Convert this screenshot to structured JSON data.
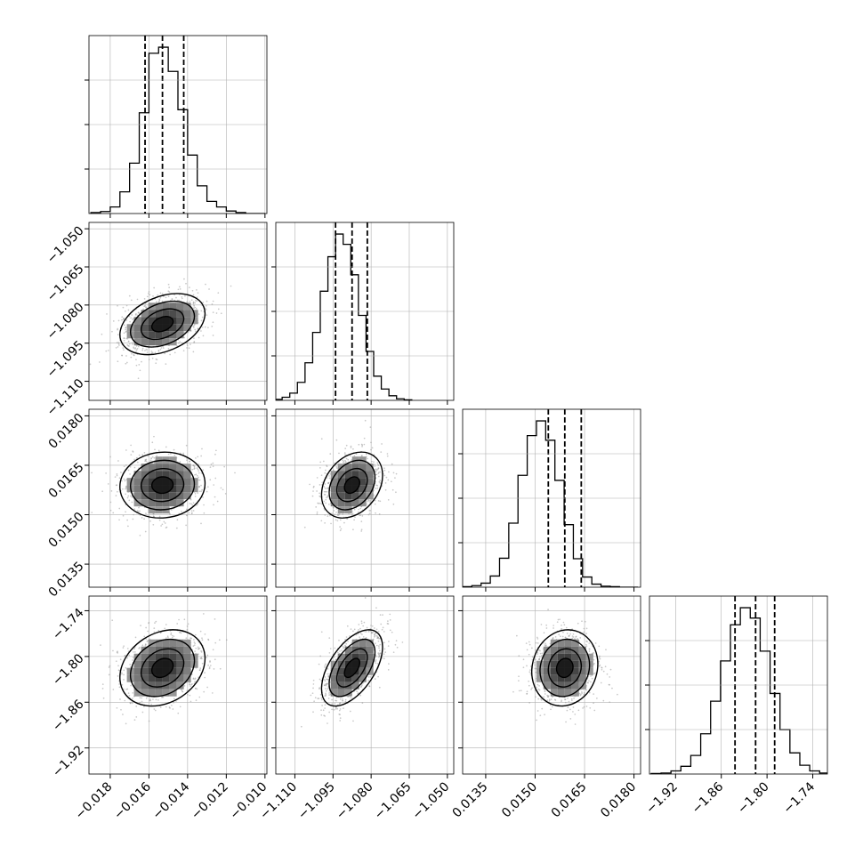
{
  "chart_data": {
    "type": "corner",
    "variables": [
      {
        "range": [
          -0.0191,
          -0.0099
        ],
        "ticks": [
          -0.018,
          -0.016,
          -0.014,
          -0.012,
          -0.01
        ],
        "tick_labels": [
          "−0.018",
          "−0.016",
          "−0.014",
          "−0.012",
          "−0.010"
        ],
        "quantiles": [
          -0.0162,
          -0.0153,
          -0.0142
        ],
        "mean": -0.0153,
        "sd": 0.0011,
        "hist_bins": [
          -0.019,
          -0.0185,
          -0.018,
          -0.0175,
          -0.017,
          -0.0165,
          -0.016,
          -0.0155,
          -0.015,
          -0.0145,
          -0.014,
          -0.0135,
          -0.013,
          -0.0125,
          -0.012,
          -0.0115,
          -0.011,
          -0.0105,
          -0.01
        ],
        "hist_counts": [
          2,
          4,
          13,
          43,
          100,
          200,
          318,
          330,
          282,
          206,
          116,
          55,
          24,
          13,
          5,
          2,
          0,
          0
        ]
      },
      {
        "range": [
          -1.1175,
          -1.0475
        ],
        "ticks": [
          -1.11,
          -1.095,
          -1.08,
          -1.065,
          -1.05
        ],
        "tick_labels": [
          "−1.110",
          "−1.095",
          "−1.080",
          "−1.065",
          "−1.050"
        ],
        "quantiles": [
          -1.094,
          -1.0875,
          -1.0815
        ],
        "mean": -1.0875,
        "sd": 0.006,
        "hist_bins": [
          -1.118,
          -1.115,
          -1.112,
          -1.109,
          -1.106,
          -1.103,
          -1.1,
          -1.097,
          -1.094,
          -1.091,
          -1.088,
          -1.085,
          -1.082,
          -1.079,
          -1.076,
          -1.073,
          -1.07,
          -1.067,
          -1.064
        ],
        "hist_counts": [
          2,
          6,
          14,
          35,
          73,
          132,
          212,
          279,
          323,
          303,
          244,
          165,
          95,
          47,
          22,
          9,
          3,
          1
        ]
      },
      {
        "range": [
          0.0128,
          0.0182
        ],
        "ticks": [
          0.0135,
          0.015,
          0.0165,
          0.018
        ],
        "tick_labels": [
          "0.0135",
          "0.0150",
          "0.0165",
          "0.0180"
        ],
        "quantiles": [
          0.0154,
          0.0159,
          0.0164
        ],
        "mean": 0.0159,
        "sd": 0.0005,
        "hist_bins": [
          0.0128,
          0.01308,
          0.01336,
          0.01364,
          0.01392,
          0.0142,
          0.01448,
          0.01476,
          0.01504,
          0.01532,
          0.0156,
          0.01588,
          0.01616,
          0.01644,
          0.01672,
          0.017,
          0.01728,
          0.01756,
          0.01784,
          0.01812
        ],
        "hist_counts": [
          1,
          3,
          8,
          22,
          57,
          126,
          220,
          298,
          327,
          289,
          210,
          123,
          56,
          20,
          6,
          2,
          1,
          0,
          0
        ]
      },
      {
        "range": [
          -1.9542,
          -1.7208
        ],
        "ticks": [
          -1.92,
          -1.86,
          -1.8,
          -1.74
        ],
        "tick_labels": [
          "−1.92",
          "−1.86",
          "−1.80",
          "−1.74"
        ],
        "quantiles": [
          -1.842,
          -1.815,
          -1.79
        ],
        "mean": -1.815,
        "sd": 0.025,
        "hist_bins": [
          -1.952,
          -1.939,
          -1.926,
          -1.913,
          -1.9,
          -1.887,
          -1.874,
          -1.861,
          -1.848,
          -1.835,
          -1.822,
          -1.809,
          -1.796,
          -1.783,
          -1.77,
          -1.757,
          -1.744,
          -1.731,
          -1.718
        ],
        "hist_counts": [
          1,
          2,
          6,
          15,
          36,
          78,
          141,
          219,
          289,
          322,
          302,
          238,
          156,
          86,
          41,
          17,
          6,
          2
        ]
      }
    ],
    "correlations": {
      "1-0": 0.35,
      "2-0": 0.05,
      "2-1": 0.3,
      "3-0": 0.25,
      "3-1": 0.55,
      "3-2": 0.1
    },
    "contour_levels_sigma": [
      0.5,
      1.0,
      1.5,
      2.0
    ],
    "quantile_line_style": "dashed",
    "grid": true,
    "point_color": "#9a9a9a",
    "line_color": "#000000",
    "grid_color": "#b0b0b0"
  }
}
